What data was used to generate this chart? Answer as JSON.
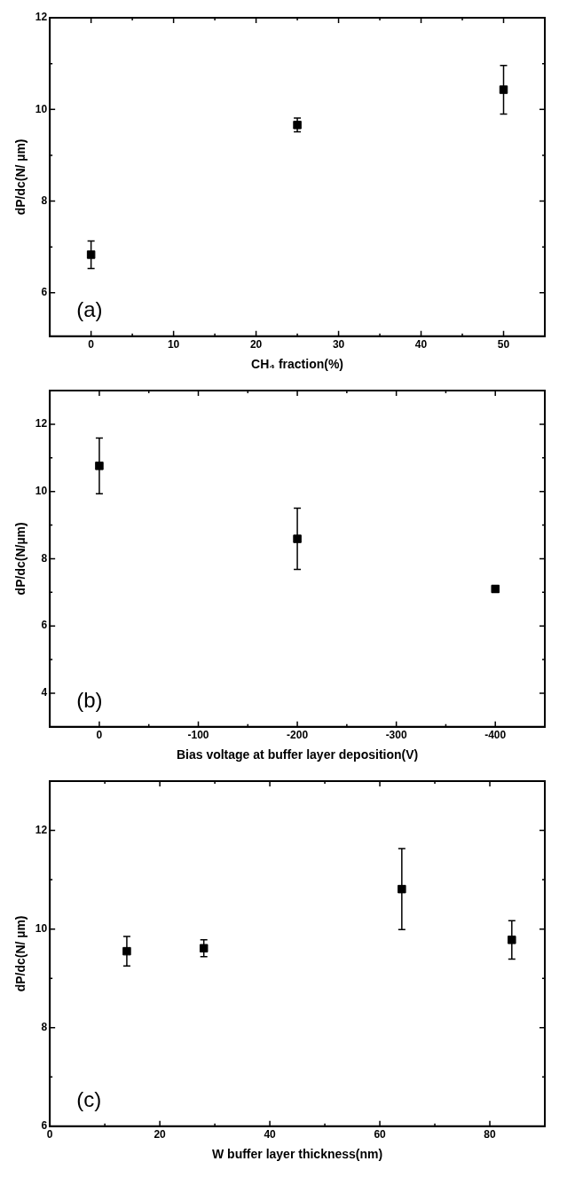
{
  "chart_data": [
    {
      "type": "scatter",
      "x": [
        0,
        25,
        50
      ],
      "values": [
        6.83,
        9.66,
        10.43
      ],
      "errors": [
        0.3,
        0.15,
        0.53
      ],
      "color": "#000000",
      "marker": "square",
      "xlim": [
        -5,
        55
      ],
      "ylim": [
        5.05,
        12
      ],
      "xticks": [
        0,
        {
          "value": 5,
          "label": null
        },
        10,
        {
          "value": 15,
          "label": null
        },
        20,
        {
          "value": 25,
          "label": null
        },
        30,
        {
          "value": 35,
          "label": null
        },
        40,
        {
          "value": 45,
          "label": null
        },
        50
      ],
      "yticks": [
        6,
        {
          "value": 7,
          "label": null
        },
        8,
        {
          "value": 9,
          "label": null
        },
        10,
        {
          "value": 11,
          "label": null
        },
        12
      ],
      "xlabel": "CH₄ fraction(%)",
      "ylabel": "dP/dc(N/ µm)",
      "annotations": [
        "(a)"
      ]
    },
    {
      "type": "scatter",
      "x": [
        0,
        -200,
        -400
      ],
      "values": [
        10.76,
        8.59,
        7.1
      ],
      "errors": [
        0.83,
        0.91,
        0.1
      ],
      "color": "#000000",
      "marker": "square",
      "xlim": [
        50,
        -450
      ],
      "ylim": [
        3,
        13
      ],
      "xticks": [
        0,
        {
          "value": -50,
          "label": null
        },
        -100,
        {
          "value": -150,
          "label": null
        },
        -200,
        {
          "value": -250,
          "label": null
        },
        -300,
        {
          "value": -350,
          "label": null
        },
        -400
      ],
      "yticks": [
        4,
        {
          "value": 5,
          "label": null
        },
        6,
        {
          "value": 7,
          "label": null
        },
        8,
        {
          "value": 9,
          "label": null
        },
        10,
        {
          "value": 11,
          "label": null
        },
        12
      ],
      "xlabel": "Bias voltage at buffer layer deposition(V)",
      "ylabel": "dP/dc(N/µm)",
      "annotations": [
        "(b)"
      ]
    },
    {
      "type": "scatter",
      "x": [
        14,
        28,
        64,
        84
      ],
      "values": [
        9.55,
        9.61,
        10.81,
        9.78
      ],
      "errors": [
        0.3,
        0.17,
        0.82,
        0.39
      ],
      "color": "#000000",
      "marker": "square",
      "xlim": [
        0,
        90
      ],
      "ylim": [
        6,
        13
      ],
      "xticks": [
        0,
        {
          "value": 10,
          "label": null
        },
        20,
        {
          "value": 30,
          "label": null
        },
        40,
        {
          "value": 50,
          "label": null
        },
        60,
        {
          "value": 70,
          "label": null
        },
        80
      ],
      "yticks": [
        6,
        {
          "value": 7,
          "label": null
        },
        8,
        {
          "value": 9,
          "label": null
        },
        10,
        {
          "value": 11,
          "label": null
        },
        12
      ],
      "xlabel": "W buffer layer thickness(nm)",
      "ylabel": "dP/dc(N/ µm)",
      "annotations": [
        "(c)"
      ]
    }
  ]
}
